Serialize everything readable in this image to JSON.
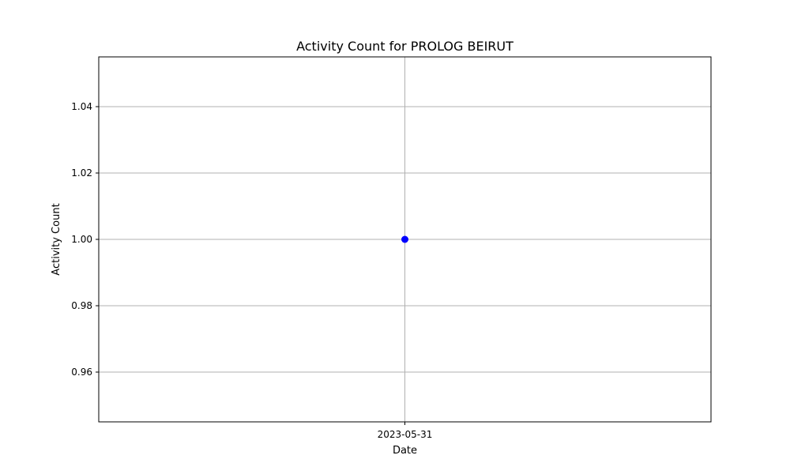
{
  "chart_data": {
    "type": "line",
    "title": "Activity Count for PROLOG BEIRUT",
    "xlabel": "Date",
    "ylabel": "Activity Count",
    "x_type": "date",
    "x": [
      "2023-05-31"
    ],
    "series": [
      {
        "values": [
          1.0
        ],
        "color": "#0000ff",
        "marker": "circle"
      }
    ],
    "x_ticks": [
      "2023-05-31"
    ],
    "y_ticks": [
      "0.96",
      "0.98",
      "1.00",
      "1.02",
      "1.04"
    ],
    "ylim": [
      0.945,
      1.055
    ],
    "grid": true,
    "legend": "none"
  }
}
